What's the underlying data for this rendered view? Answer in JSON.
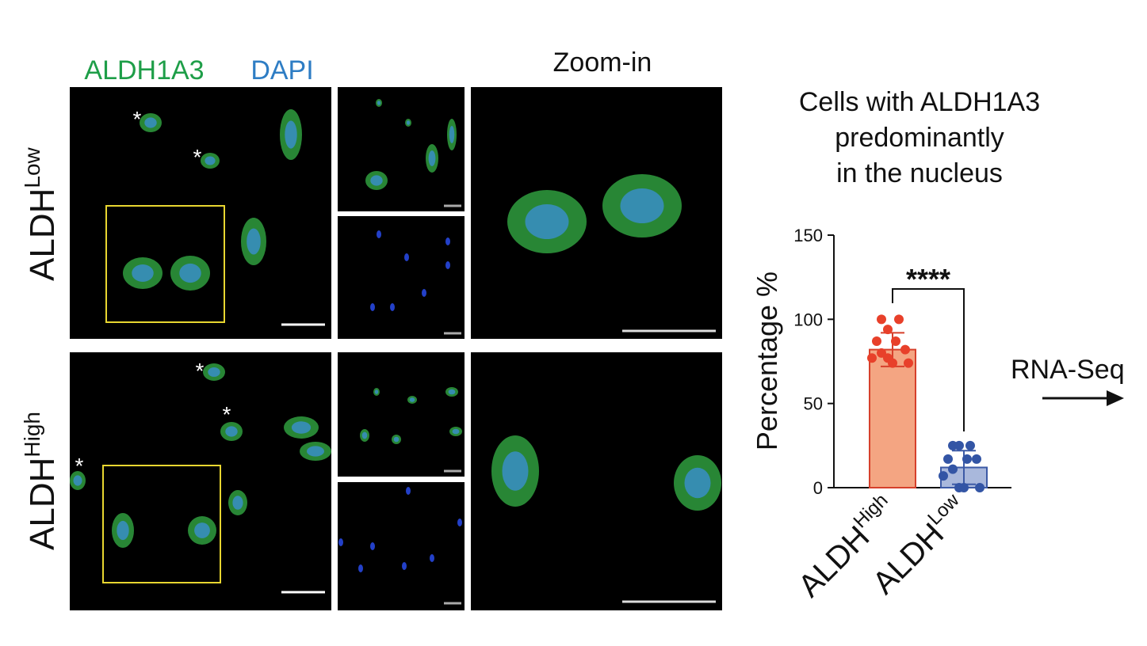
{
  "panels": {
    "channel_labels": [
      "ALDH1A3",
      "DAPI"
    ],
    "zoom_label": "Zoom-in",
    "rows": [
      {
        "text": "ALDH",
        "sup": "Low"
      },
      {
        "text": "ALDH",
        "sup": "High"
      }
    ],
    "asterisk": "*"
  },
  "chart_data": {
    "type": "bar",
    "title_lines": [
      "Cells with ALDH1A3",
      "predominantly",
      "in the nucleus"
    ],
    "ylabel": "Percentage %",
    "categories": [
      {
        "text": "ALDH",
        "sup": "High"
      },
      {
        "text": "ALDH",
        "sup": "Low"
      }
    ],
    "values": [
      82,
      12
    ],
    "errors": [
      10,
      10
    ],
    "colors": [
      "#f4a582",
      "#a9b8dc"
    ],
    "edge_colors": [
      "#d6402b",
      "#3c5aa6"
    ],
    "points": [
      [
        100,
        100,
        94,
        87,
        87,
        82,
        80,
        77,
        77,
        74,
        74
      ],
      [
        25,
        25,
        25,
        17,
        17,
        17,
        11,
        7,
        0,
        0,
        0
      ]
    ],
    "point_colors": [
      "#e8402a",
      "#3355a5"
    ],
    "ylim": [
      0,
      150
    ],
    "yticks": [
      0,
      50,
      100,
      150
    ],
    "significance": "****"
  },
  "annotation": "RNA-Seq"
}
